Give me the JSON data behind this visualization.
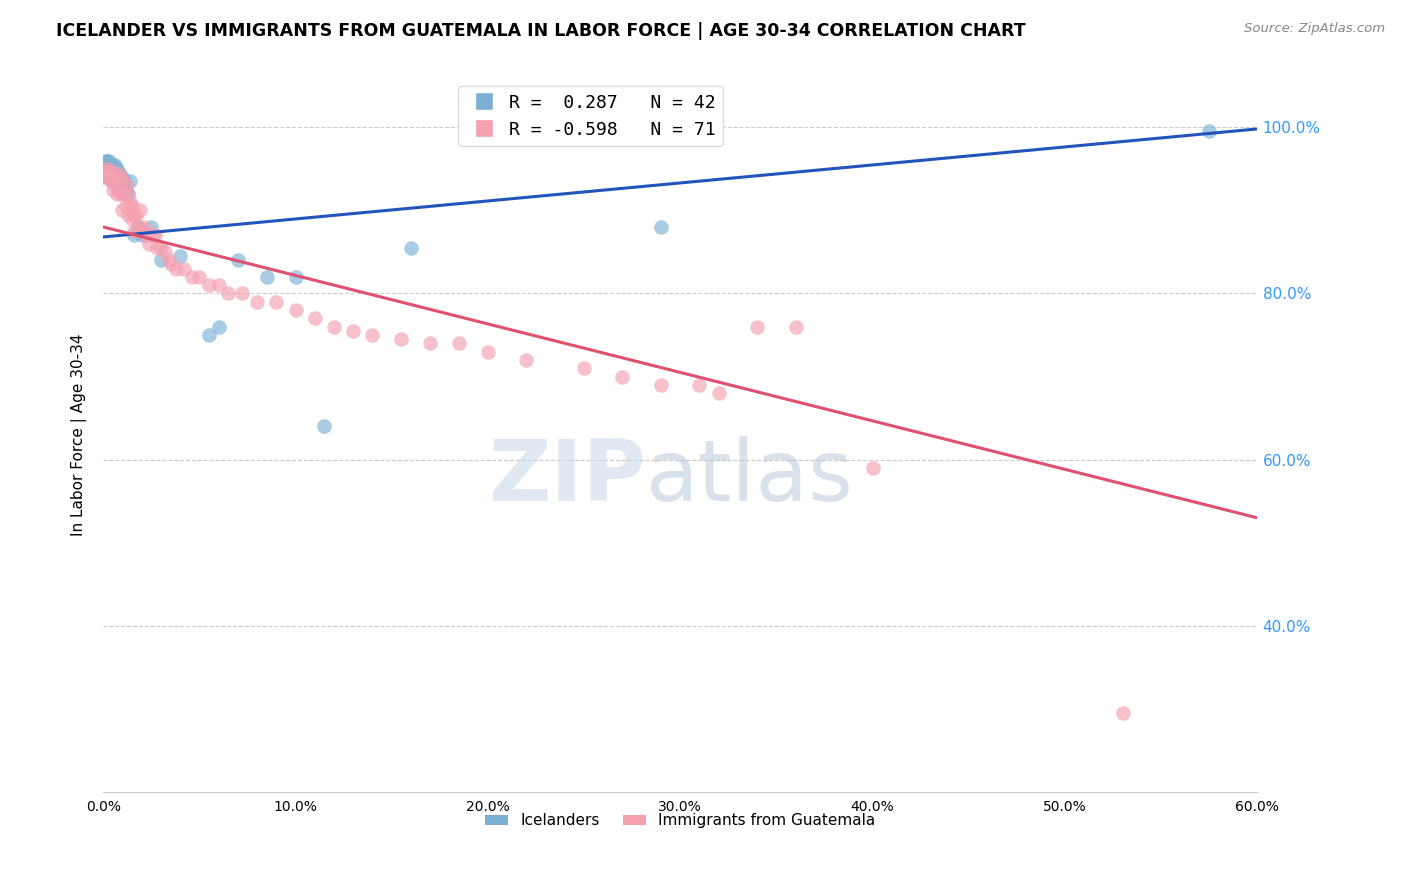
{
  "title": "ICELANDER VS IMMIGRANTS FROM GUATEMALA IN LABOR FORCE | AGE 30-34 CORRELATION CHART",
  "source": "Source: ZipAtlas.com",
  "ylabel": "In Labor Force | Age 30-34",
  "xlim": [
    0.0,
    0.6
  ],
  "ylim": [
    0.2,
    1.06
  ],
  "xticks": [
    0.0,
    0.1,
    0.2,
    0.3,
    0.4,
    0.5,
    0.6
  ],
  "yticks_right": [
    0.4,
    0.6,
    0.8,
    1.0
  ],
  "yticks_grid": [
    0.4,
    0.6,
    0.8,
    1.0
  ],
  "blue_color": "#7BAFD4",
  "pink_color": "#F4A0B0",
  "blue_line_color": "#2255BB",
  "pink_line_color": "#E05070",
  "legend_blue_label": "R =  0.287   N = 42",
  "legend_pink_label": "R = -0.598   N = 71",
  "legend_label_blue": "Icelanders",
  "legend_label_pink": "Immigrants from Guatemala",
  "watermark_zip": "ZIP",
  "watermark_atlas": "atlas",
  "blue_trend_x": [
    0.0,
    0.6
  ],
  "blue_trend_y": [
    0.868,
    0.998
  ],
  "pink_trend_x": [
    0.0,
    0.6
  ],
  "pink_trend_y": [
    0.88,
    0.53
  ],
  "blue_x": [
    0.001,
    0.001,
    0.002,
    0.002,
    0.003,
    0.003,
    0.003,
    0.004,
    0.004,
    0.005,
    0.005,
    0.006,
    0.006,
    0.006,
    0.007,
    0.007,
    0.008,
    0.008,
    0.009,
    0.009,
    0.01,
    0.01,
    0.011,
    0.011,
    0.012,
    0.013,
    0.014,
    0.016,
    0.018,
    0.02,
    0.025,
    0.03,
    0.04,
    0.055,
    0.06,
    0.07,
    0.085,
    0.1,
    0.115,
    0.16,
    0.29,
    0.575
  ],
  "blue_y": [
    0.96,
    0.94,
    0.96,
    0.955,
    0.96,
    0.955,
    0.945,
    0.95,
    0.94,
    0.955,
    0.945,
    0.955,
    0.94,
    0.93,
    0.95,
    0.935,
    0.945,
    0.935,
    0.94,
    0.925,
    0.94,
    0.925,
    0.935,
    0.92,
    0.925,
    0.92,
    0.935,
    0.87,
    0.88,
    0.87,
    0.88,
    0.84,
    0.845,
    0.75,
    0.76,
    0.84,
    0.82,
    0.82,
    0.64,
    0.855,
    0.88,
    0.995
  ],
  "pink_x": [
    0.001,
    0.001,
    0.002,
    0.003,
    0.003,
    0.004,
    0.004,
    0.005,
    0.005,
    0.006,
    0.007,
    0.007,
    0.008,
    0.008,
    0.009,
    0.009,
    0.01,
    0.01,
    0.011,
    0.012,
    0.012,
    0.013,
    0.013,
    0.014,
    0.015,
    0.015,
    0.016,
    0.016,
    0.017,
    0.018,
    0.019,
    0.02,
    0.021,
    0.022,
    0.024,
    0.026,
    0.027,
    0.028,
    0.03,
    0.032,
    0.034,
    0.035,
    0.038,
    0.042,
    0.046,
    0.05,
    0.055,
    0.06,
    0.065,
    0.072,
    0.08,
    0.09,
    0.1,
    0.11,
    0.12,
    0.13,
    0.14,
    0.155,
    0.17,
    0.185,
    0.2,
    0.22,
    0.25,
    0.27,
    0.29,
    0.31,
    0.32,
    0.34,
    0.36,
    0.4,
    0.53
  ],
  "pink_y": [
    0.95,
    0.94,
    0.945,
    0.95,
    0.94,
    0.935,
    0.945,
    0.935,
    0.925,
    0.935,
    0.945,
    0.92,
    0.94,
    0.925,
    0.94,
    0.92,
    0.935,
    0.9,
    0.92,
    0.93,
    0.905,
    0.92,
    0.895,
    0.91,
    0.905,
    0.89,
    0.895,
    0.875,
    0.895,
    0.88,
    0.9,
    0.875,
    0.88,
    0.87,
    0.86,
    0.87,
    0.87,
    0.855,
    0.855,
    0.85,
    0.84,
    0.835,
    0.83,
    0.83,
    0.82,
    0.82,
    0.81,
    0.81,
    0.8,
    0.8,
    0.79,
    0.79,
    0.78,
    0.77,
    0.76,
    0.755,
    0.75,
    0.745,
    0.74,
    0.74,
    0.73,
    0.72,
    0.71,
    0.7,
    0.69,
    0.69,
    0.68,
    0.76,
    0.76,
    0.59,
    0.295
  ]
}
